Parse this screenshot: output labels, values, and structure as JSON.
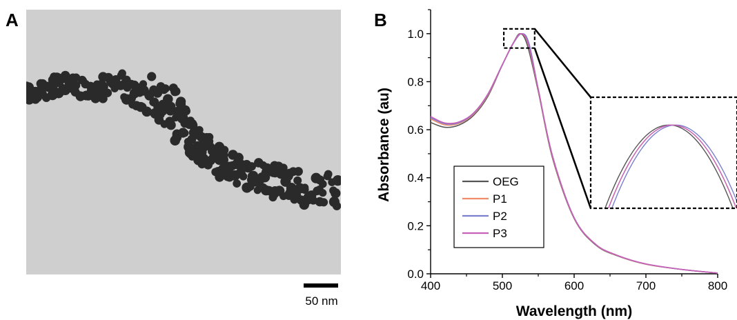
{
  "panels": {
    "a_label": "A",
    "b_label": "B"
  },
  "micrograph": {
    "scale_bar_label": "50 nm"
  },
  "chart_data": {
    "type": "line",
    "xlabel": "Wavelength (nm)",
    "ylabel": "Absorbance (au)",
    "xlim": [
      400,
      800
    ],
    "ylim": [
      0,
      1.1
    ],
    "xticks": [
      "400",
      "500",
      "600",
      "700",
      "800"
    ],
    "yticks": [
      "0.0",
      "0.2",
      "0.4",
      "0.6",
      "0.8",
      "1.0"
    ],
    "legend_placement": "lower-left",
    "inset": {
      "zoom_region_x": [
        502,
        545
      ],
      "zoom_region_y": [
        0.94,
        1.02
      ],
      "style": "dashed box magnified at right"
    },
    "series": [
      {
        "name": "OEG",
        "color": "#555555",
        "x": [
          400,
          420,
          440,
          460,
          480,
          500,
          515,
          525,
          535,
          550,
          570,
          600,
          630,
          660,
          700,
          750,
          800
        ],
        "y": [
          0.63,
          0.61,
          0.62,
          0.66,
          0.74,
          0.87,
          0.96,
          1.0,
          0.95,
          0.76,
          0.48,
          0.23,
          0.12,
          0.075,
          0.04,
          0.018,
          0.003
        ]
      },
      {
        "name": "P1",
        "color": "#ef8c6a",
        "x": [
          400,
          420,
          440,
          460,
          480,
          500,
          515,
          526,
          536,
          550,
          570,
          600,
          630,
          660,
          700,
          750,
          800
        ],
        "y": [
          0.645,
          0.62,
          0.627,
          0.665,
          0.745,
          0.87,
          0.96,
          1.0,
          0.955,
          0.765,
          0.485,
          0.232,
          0.122,
          0.076,
          0.04,
          0.018,
          0.003
        ]
      },
      {
        "name": "P2",
        "color": "#7b7fcf",
        "x": [
          400,
          420,
          440,
          460,
          480,
          500,
          515,
          527,
          537,
          550,
          570,
          600,
          630,
          660,
          700,
          750,
          800
        ],
        "y": [
          0.65,
          0.625,
          0.63,
          0.668,
          0.748,
          0.87,
          0.958,
          1.0,
          0.96,
          0.77,
          0.49,
          0.234,
          0.123,
          0.077,
          0.041,
          0.018,
          0.003
        ]
      },
      {
        "name": "P3",
        "color": "#c761b8",
        "x": [
          400,
          420,
          440,
          460,
          480,
          500,
          515,
          526,
          536,
          550,
          570,
          600,
          630,
          660,
          700,
          750,
          800
        ],
        "y": [
          0.655,
          0.628,
          0.633,
          0.67,
          0.75,
          0.872,
          0.96,
          1.0,
          0.958,
          0.768,
          0.488,
          0.233,
          0.123,
          0.077,
          0.041,
          0.018,
          0.003
        ]
      }
    ]
  }
}
